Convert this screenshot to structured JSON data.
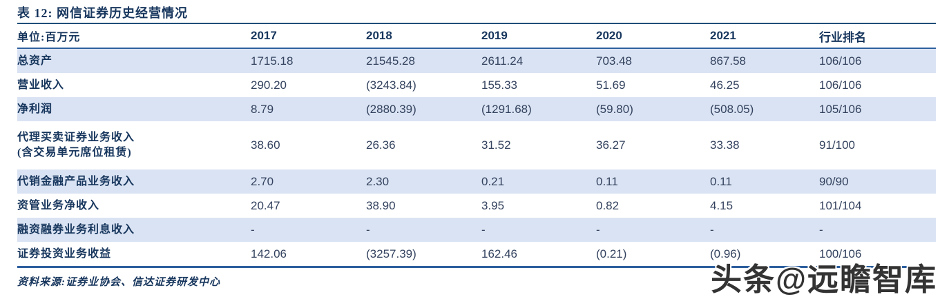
{
  "title": "表 12: 网信证券历史经营情况",
  "table": {
    "unit_label": "单位:百万元",
    "columns": [
      "2017",
      "2018",
      "2019",
      "2020",
      "2021",
      "行业排名"
    ],
    "rows": [
      {
        "label": "总资产",
        "label2": "",
        "values": [
          "1715.18",
          "21545.28",
          "2611.24",
          "703.48",
          "867.58",
          "106/106"
        ]
      },
      {
        "label": "营业收入",
        "label2": "",
        "values": [
          "290.20",
          "(3243.84)",
          "155.33",
          "51.69",
          "46.25",
          "106/106"
        ]
      },
      {
        "label": "净利润",
        "label2": "",
        "values": [
          "8.79",
          "(2880.39)",
          "(1291.68)",
          "(59.80)",
          "(508.05)",
          "105/106"
        ]
      },
      {
        "label": "代理买卖证券业务收入",
        "label2": "(含交易单元席位租赁)",
        "values": [
          "38.60",
          "26.36",
          "31.52",
          "36.27",
          "33.38",
          "91/100"
        ]
      },
      {
        "label": "代销金融产品业务收入",
        "label2": "",
        "values": [
          "2.70",
          "2.30",
          "0.21",
          "0.11",
          "0.11",
          "90/90"
        ]
      },
      {
        "label": "资管业务净收入",
        "label2": "",
        "values": [
          "20.47",
          "38.90",
          "3.95",
          "0.82",
          "4.15",
          "101/104"
        ]
      },
      {
        "label": "融资融券业务利息收入",
        "label2": "",
        "values": [
          "-",
          "-",
          "-",
          "-",
          "-",
          "-"
        ]
      },
      {
        "label": "证券投资业务收益",
        "label2": "",
        "values": [
          "142.06",
          "(3257.39)",
          "162.46",
          "(0.21)",
          "(0.96)",
          "100/106"
        ]
      }
    ]
  },
  "footer": {
    "source": "资料来源:证券业协会、信达证券研发中心"
  },
  "watermark": "头条@远瞻智库",
  "colors": {
    "navy": "#17365d",
    "num": "#33425e",
    "line": "#2e5f9e",
    "band": "#dae3f3",
    "wm": "#333333"
  }
}
